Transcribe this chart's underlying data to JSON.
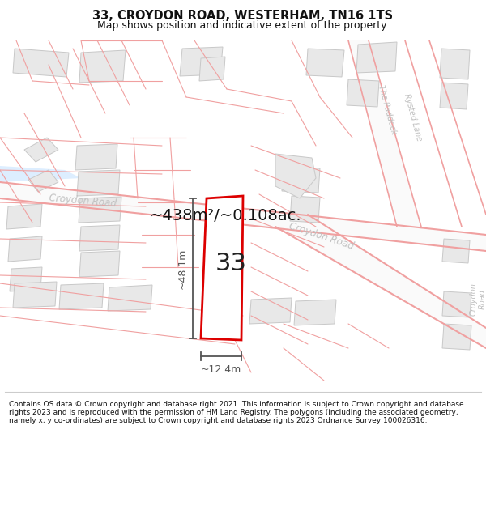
{
  "title": "33, CROYDON ROAD, WESTERHAM, TN16 1TS",
  "subtitle": "Map shows position and indicative extent of the property.",
  "footer": "Contains OS data © Crown copyright and database right 2021. This information is subject to Crown copyright and database rights 2023 and is reproduced with the permission of HM Land Registry. The polygons (including the associated geometry, namely x, y co-ordinates) are subject to Crown copyright and database rights 2023 Ordnance Survey 100026316.",
  "area_label": "~438m²/~0.108ac.",
  "property_number": "33",
  "dim_height": "~48.1m",
  "dim_width": "~12.4m",
  "map_bg": "#ffffff",
  "road_line_color": "#f0a0a0",
  "road_fill_color": "#fafafa",
  "building_fill": "#e8e8e8",
  "building_stroke": "#c8c8c8",
  "highlight_fill": "#ffffff",
  "highlight_stroke": "#dd0000",
  "road_label_color": "#c0c0c0",
  "dim_line_color": "#555555",
  "area_label_color": "#111111",
  "footer_bg": "#ffffff",
  "title_color": "#111111",
  "footer_color": "#111111",
  "blue_strip_color": "#ddeeff"
}
